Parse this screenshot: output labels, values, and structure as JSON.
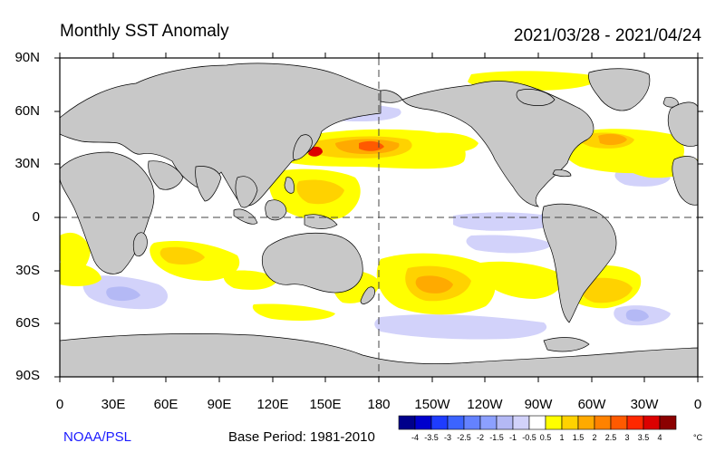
{
  "header": {
    "title": "Monthly SST Anomaly",
    "date_range": "2021/03/28 - 2021/04/24"
  },
  "axes": {
    "lat_labels": [
      "90N",
      "60N",
      "30N",
      "0",
      "30S",
      "60S",
      "90S"
    ],
    "lon_labels": [
      "0",
      "30E",
      "60E",
      "90E",
      "120E",
      "150E",
      "180",
      "150W",
      "120W",
      "90W",
      "60W",
      "30W",
      "0"
    ]
  },
  "footer": {
    "credit": "NOAA/PSL",
    "base_period": "Base Period: 1981-2010"
  },
  "colorbar": {
    "labels": [
      "-4",
      "-3.5",
      "-3",
      "-2.5",
      "-2",
      "-1.5",
      "-1",
      "-0.5",
      "0.5",
      "1",
      "1.5",
      "2",
      "2.5",
      "3",
      "3.5",
      "4"
    ],
    "unit": "°C",
    "colors": [
      "#00008b",
      "#0000cd",
      "#1e3cff",
      "#3c64ff",
      "#6482ff",
      "#8ca0ff",
      "#b4b9f5",
      "#d2d2fa",
      "#ffffff",
      "#ffff00",
      "#ffd200",
      "#ffaa00",
      "#ff8200",
      "#ff5a00",
      "#ff2800",
      "#dc0000",
      "#8b0000"
    ]
  },
  "colors": {
    "land": "#c8c8c8",
    "warm_weak": "#ffff00",
    "warm_mid": "#ffd200",
    "warm_strong": "#ff8200",
    "warm_max": "#dc0000",
    "cool_weak": "#d2d2fa",
    "cool_mid": "#b4b9f5"
  }
}
